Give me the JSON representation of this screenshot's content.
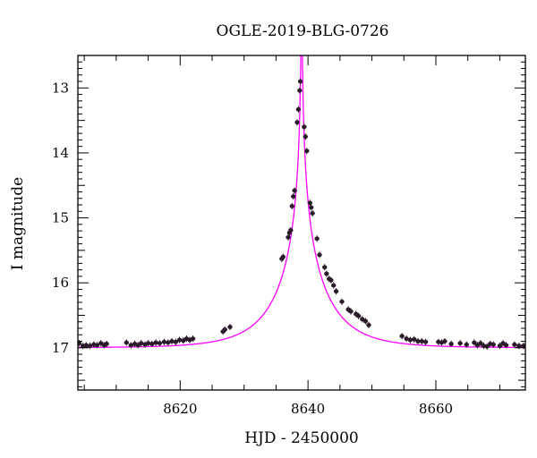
{
  "chart_data": {
    "type": "scatter",
    "title": "OGLE-2019-BLG-0726",
    "xlabel": "HJD - 2450000",
    "ylabel": "I magnitude",
    "xlim": [
      8604,
      8674
    ],
    "ylim": [
      17.65,
      12.5
    ],
    "y_inverted": true,
    "grid": false,
    "x_ticks": [
      8620,
      8640,
      8660
    ],
    "x_tick_labels": [
      "8620",
      "8640",
      "8660"
    ],
    "y_ticks": [
      13,
      14,
      15,
      16,
      17
    ],
    "y_tick_labels": [
      "13",
      "14",
      "15",
      "16",
      "17"
    ],
    "colors": {
      "points": "#2a1a2a",
      "model": "#ff00ff",
      "axes": "#000000"
    },
    "model": {
      "name": "",
      "baseline_mag": 17.0,
      "t0": 8639.0,
      "tE": 8.0,
      "u0": 0.004
    },
    "series": [
      {
        "name": "",
        "x": [
          8604.2,
          8604.8,
          8605.3,
          8605.9,
          8606.5,
          8607.0,
          8607.6,
          8608.1,
          8608.5,
          8611.6,
          8612.3,
          8612.9,
          8613.4,
          8613.9,
          8614.5,
          8615.0,
          8615.6,
          8616.2,
          8616.8,
          8617.5,
          8618.1,
          8618.7,
          8619.3,
          8619.9,
          8620.5,
          8621.0,
          8621.5,
          8622.0,
          8626.7,
          8627.0,
          8627.8,
          8635.9,
          8636.1,
          8636.9,
          8637.1,
          8637.3,
          8637.5,
          8637.7,
          8637.9,
          8638.3,
          8638.5,
          8638.7,
          8638.8,
          8639.4,
          8639.6,
          8639.8,
          8640.3,
          8640.5,
          8640.7,
          8641.4,
          8641.8,
          8642.6,
          8642.9,
          8643.3,
          8643.6,
          8644.0,
          8644.4,
          8645.3,
          8646.3,
          8646.7,
          8647.5,
          8647.9,
          8648.5,
          8649.0,
          8649.5,
          8654.7,
          8655.4,
          8656.0,
          8656.6,
          8657.2,
          8657.8,
          8658.4,
          8660.4,
          8660.9,
          8661.4,
          8662.4,
          8663.8,
          8664.8,
          8666.0,
          8666.5,
          8667.0,
          8667.5,
          8668.0,
          8668.5,
          8669.0,
          8670.0,
          8670.5,
          8671.0,
          8672.3,
          8673.0,
          8673.7
        ],
        "y": [
          16.93,
          16.97,
          16.96,
          16.97,
          16.95,
          16.96,
          16.93,
          16.96,
          16.94,
          16.92,
          16.96,
          16.94,
          16.96,
          16.93,
          16.95,
          16.93,
          16.94,
          16.92,
          16.93,
          16.91,
          16.92,
          16.9,
          16.91,
          16.88,
          16.89,
          16.86,
          16.88,
          16.86,
          16.75,
          16.72,
          16.68,
          15.63,
          15.6,
          15.3,
          15.23,
          15.19,
          14.82,
          14.67,
          14.58,
          13.53,
          13.33,
          13.04,
          12.9,
          13.6,
          13.75,
          13.97,
          14.77,
          14.84,
          14.93,
          15.32,
          15.57,
          15.76,
          15.86,
          15.94,
          15.96,
          16.04,
          16.13,
          16.29,
          16.41,
          16.44,
          16.48,
          16.51,
          16.56,
          16.59,
          16.65,
          16.82,
          16.86,
          16.88,
          16.87,
          16.9,
          16.9,
          16.91,
          16.91,
          16.92,
          16.9,
          16.94,
          16.93,
          16.95,
          16.92,
          16.96,
          16.93,
          16.97,
          16.98,
          16.94,
          16.95,
          16.97,
          16.93,
          16.96,
          16.95,
          16.97,
          16.97
        ]
      }
    ]
  }
}
